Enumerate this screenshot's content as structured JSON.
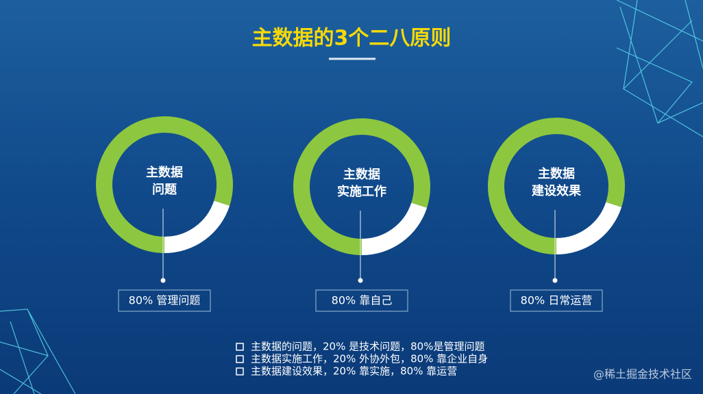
{
  "title": "主数据的3个二八原则",
  "colors": [
    "#8dc73f",
    "#ffffff"
  ],
  "donuts": [
    {
      "center_label": [
        "主数据",
        "问题"
      ],
      "values": [
        80,
        20
      ],
      "label": "80% 管理问题"
    },
    {
      "center_label": [
        "主数据",
        "实施工作"
      ],
      "values": [
        80,
        20
      ],
      "label": "80% 靠自己"
    },
    {
      "center_label": [
        "主数据",
        "建设效果"
      ],
      "values": [
        80,
        20
      ],
      "label": "80% 日常运营"
    }
  ],
  "bullets": [
    "主数据的问题，20% 是技术问题，80%是管理问题",
    "主数据实施工作，20% 外协外包，80% 靠企业自身",
    "主数据建设效果，20% 靠实施，80% 靠运营"
  ],
  "watermark": "@稀土掘金技术社区"
}
